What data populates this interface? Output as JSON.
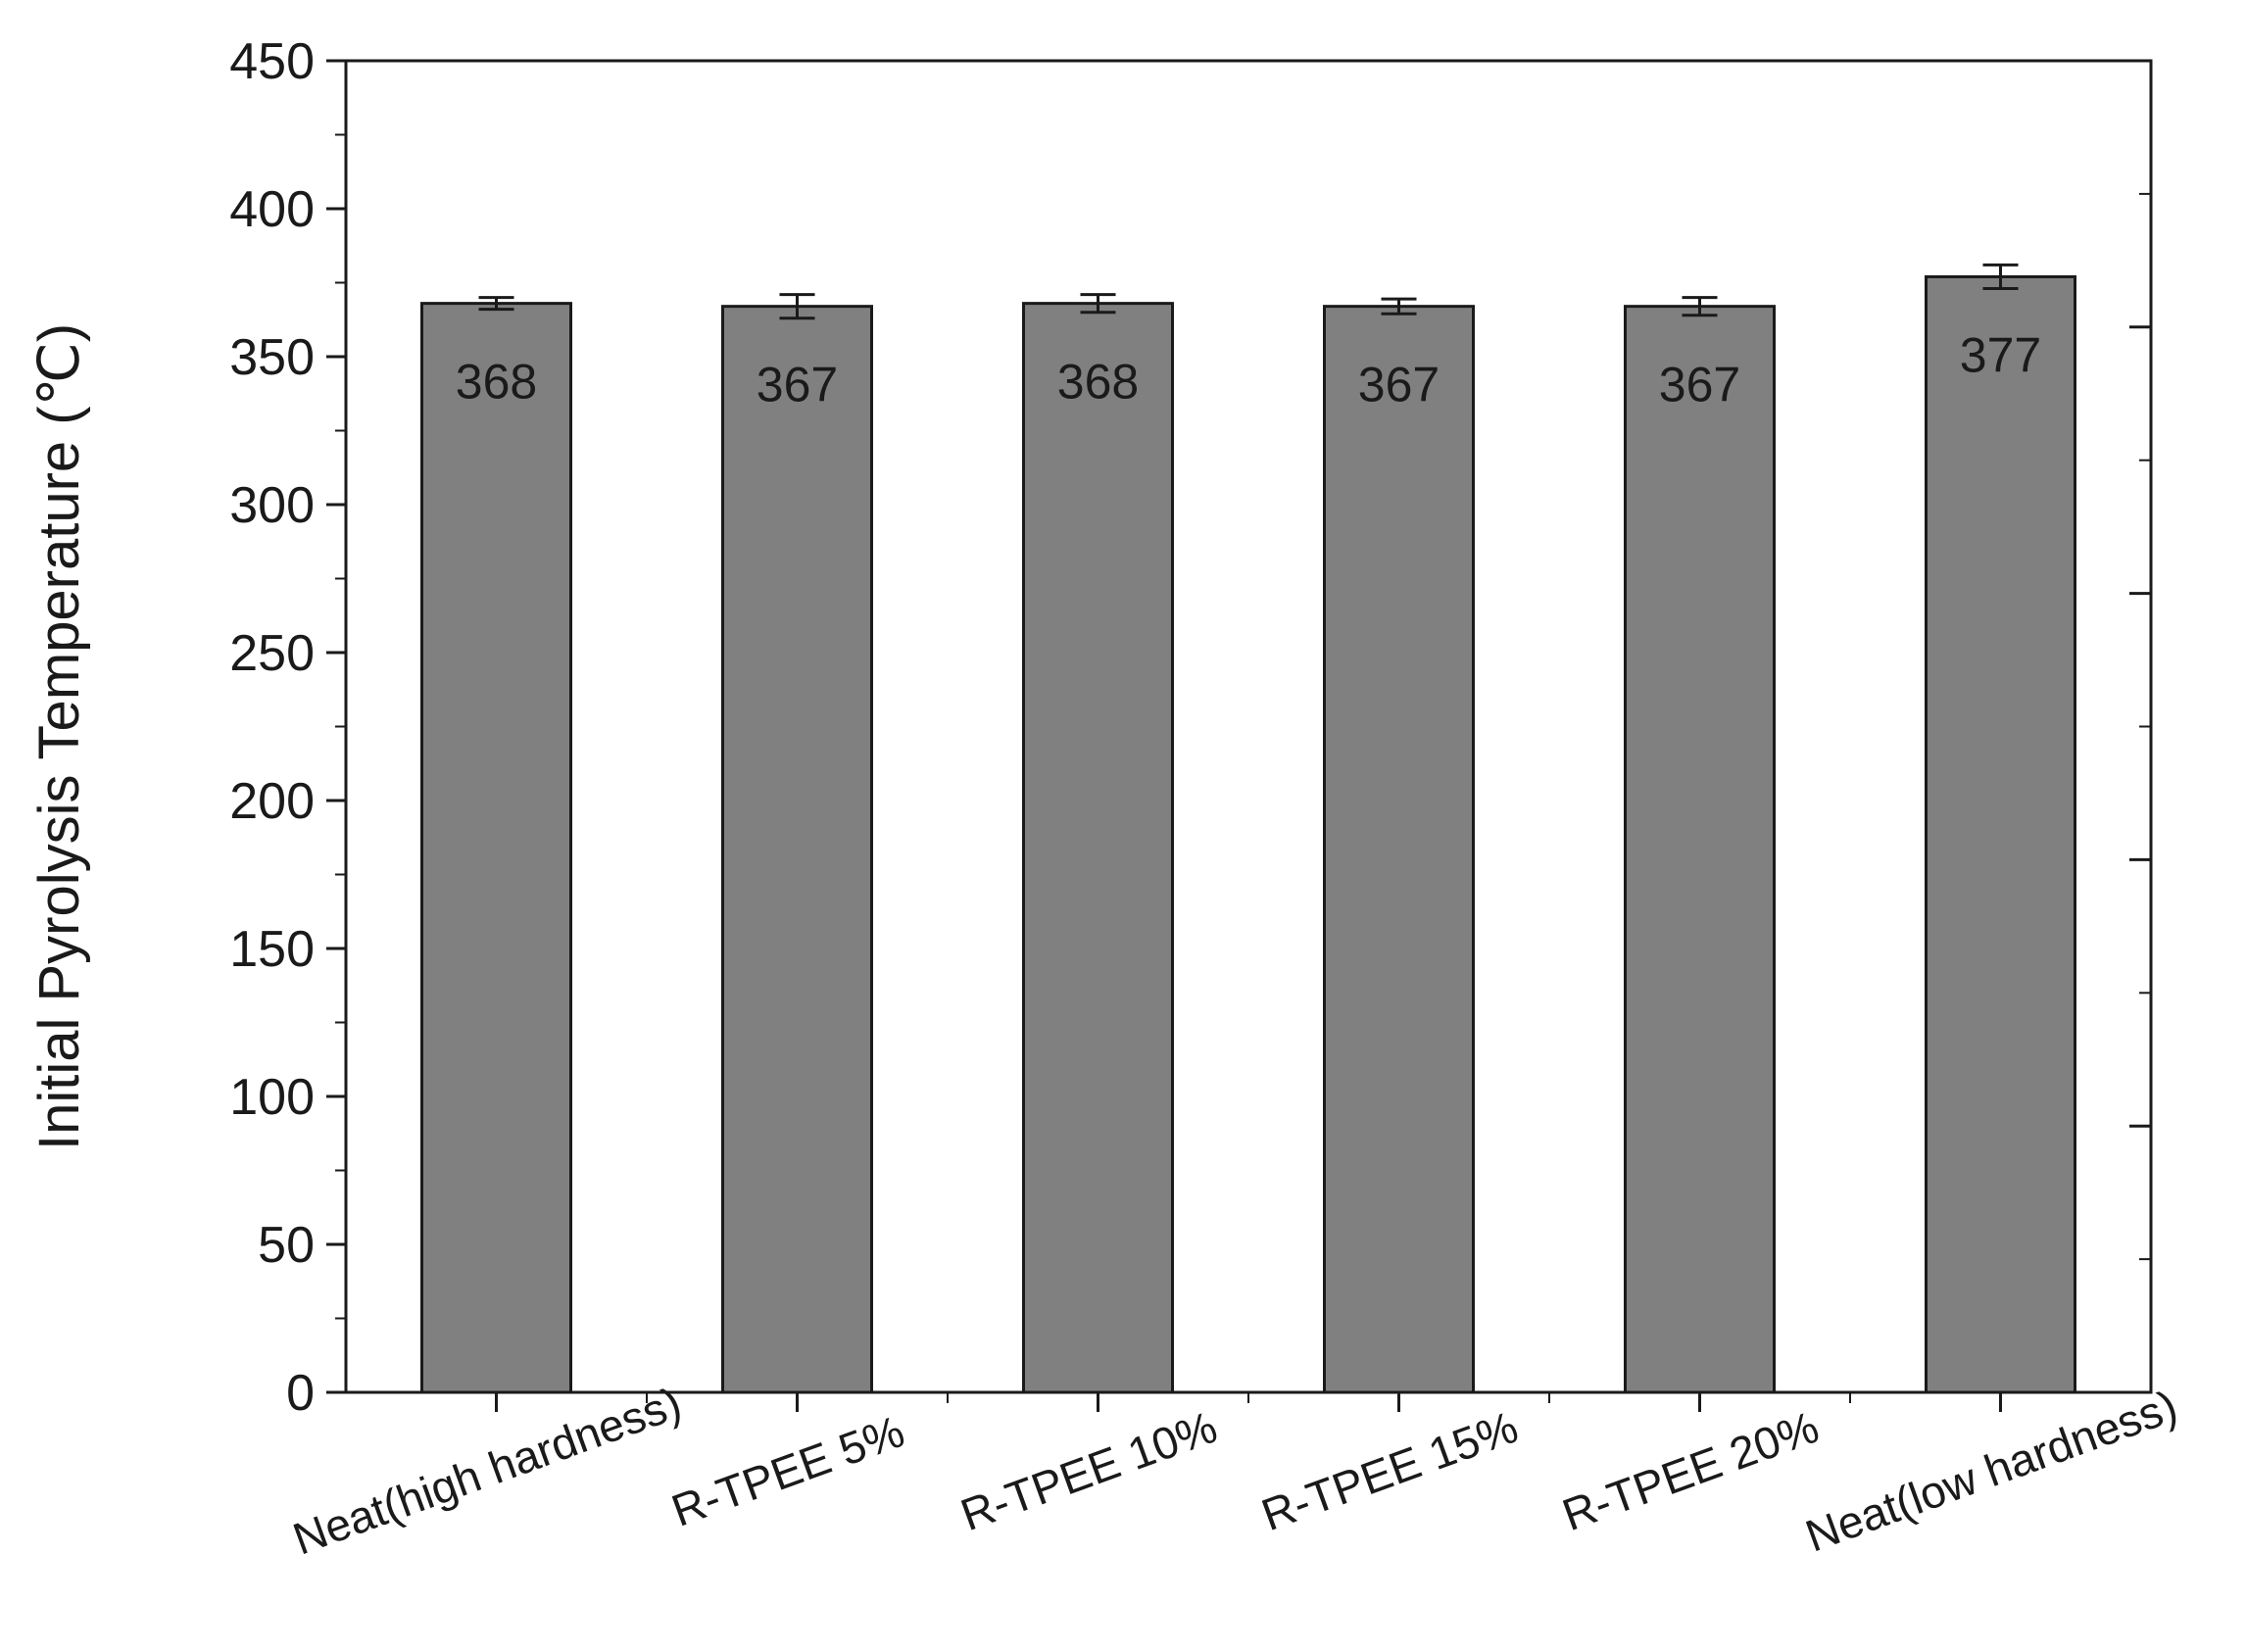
{
  "chart_data": {
    "type": "bar",
    "categories": [
      "Neat(high hardness)",
      "R-TPEE 5%",
      "R-TPEE 10%",
      "R-TPEE 15%",
      "R-TPEE 20%",
      "Neat(low hardness)"
    ],
    "values": [
      368,
      367,
      368,
      367,
      367,
      377
    ],
    "data_labels": [
      "368",
      "367",
      "368",
      "367",
      "367",
      "377"
    ],
    "error": [
      2,
      4,
      3,
      2.5,
      3,
      4
    ],
    "title": "",
    "xlabel": "",
    "ylabel": "Initial Pyrolysis Temperature (℃)",
    "ylim": [
      0,
      450
    ],
    "yticks": [
      0,
      50,
      100,
      150,
      200,
      250,
      300,
      350,
      400,
      450
    ],
    "ytick_labels": [
      "0",
      "50",
      "100",
      "150",
      "200",
      "250",
      "300",
      "350",
      "400",
      "450"
    ],
    "grid": false,
    "legend": "none",
    "colors": {
      "bar": "#808080",
      "outline": "#1a1a1a",
      "axis": "#1a1a1a"
    }
  }
}
